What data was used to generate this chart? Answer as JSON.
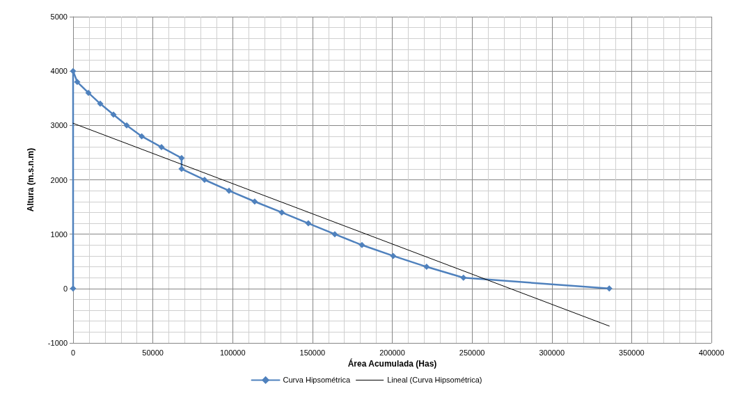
{
  "chart_data": {
    "type": "line",
    "xlabel": "Área Acumulada (Has)",
    "ylabel": "Altura (m.s.n.m)",
    "xlim": [
      0,
      400000
    ],
    "xticks": [
      0,
      50000,
      100000,
      150000,
      200000,
      250000,
      300000,
      350000,
      400000
    ],
    "ylim": [
      -1000,
      5000
    ],
    "yticks": [
      -1000,
      0,
      1000,
      2000,
      3000,
      4000,
      5000
    ],
    "grid": true,
    "legend": "bottom",
    "series": [
      {
        "name": "Curva Hipsométrica",
        "color": "#4f81bd",
        "marker": "diamond",
        "line_style": "solid",
        "x": [
          0,
          0,
          2600,
          9600,
          17000,
          25300,
          33600,
          43000,
          55400,
          68000,
          68000,
          82400,
          97700,
          113800,
          130800,
          147400,
          164000,
          181000,
          200600,
          221500,
          244600,
          336000
        ],
        "values": [
          0,
          4000,
          3800,
          3600,
          3400,
          3200,
          3000,
          2800,
          2600,
          2400,
          2200,
          2000,
          1800,
          1600,
          1400,
          1200,
          1000,
          800,
          600,
          400,
          200,
          0
        ]
      },
      {
        "name": "Lineal (Curva Hipsométrica)",
        "color": "#000000",
        "marker": "none",
        "line_style": "solid",
        "x": [
          0,
          336000
        ],
        "values": [
          3040,
          -690
        ]
      }
    ]
  }
}
